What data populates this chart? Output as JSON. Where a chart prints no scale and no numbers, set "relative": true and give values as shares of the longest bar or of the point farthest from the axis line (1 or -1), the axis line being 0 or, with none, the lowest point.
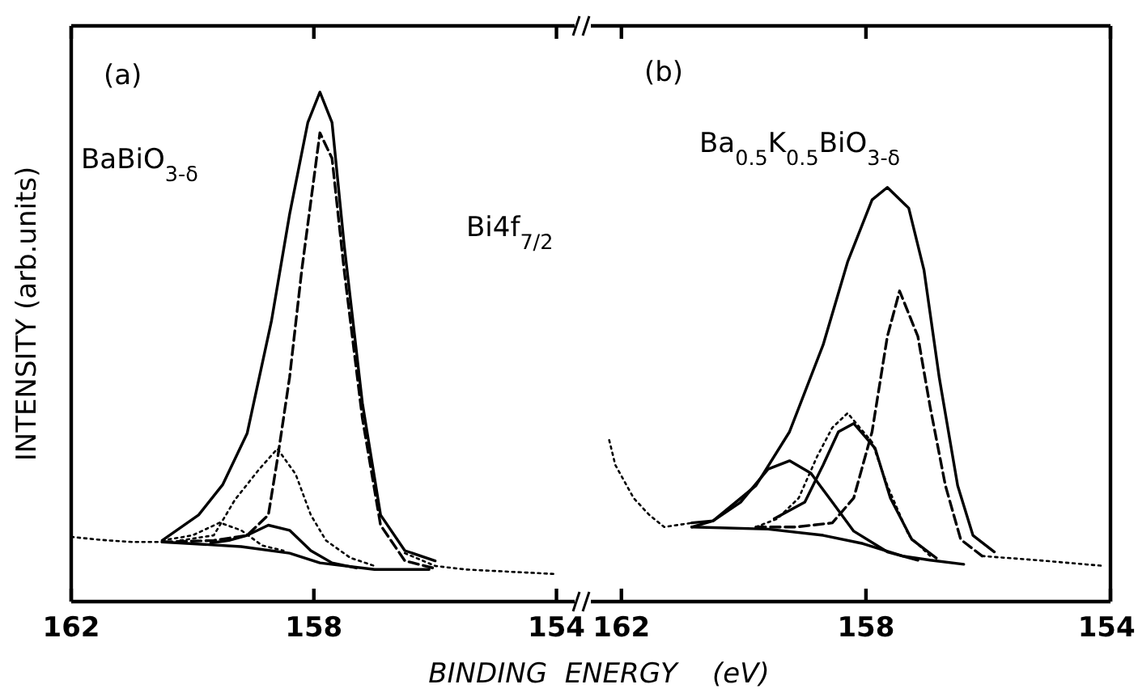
{
  "chart_data": [
    {
      "type": "line",
      "relative": true,
      "xlim": [
        162,
        153.7
      ],
      "xticks": [
        162,
        158,
        154
      ],
      "ylabel": "INTENSITY  (arb.units)",
      "xlabel": "BINDING  ENERGY    (eV)",
      "annotations": [
        "(a)",
        "BaBiO$_{3-δ}$",
        "Bi4f$_{7/2}$"
      ],
      "series": [
        {
          "color": "#000000",
          "line_style": "dotted",
          "x": [
            162,
            161.5,
            161,
            160.5,
            160,
            156.5,
            156,
            155.5,
            155,
            154.5,
            154
          ],
          "values": [
            0.127,
            0.121,
            0.117,
            0.117,
            null,
            0.095,
            0.07,
            0.063,
            0.06,
            0.057,
            0.054
          ]
        },
        {
          "color": "#000000",
          "line_style": "solid",
          "x": [
            160.5,
            159.9,
            159.5,
            159.1,
            158.7,
            158.4,
            158.1,
            157.9,
            157.7,
            157.5,
            157.2,
            156.9,
            156.5,
            156.0
          ],
          "values": [
            0.12,
            0.17,
            0.23,
            0.33,
            0.55,
            0.76,
            0.94,
            1.0,
            0.94,
            0.7,
            0.39,
            0.17,
            0.1,
            0.08
          ]
        },
        {
          "color": "#000000",
          "line_style": "dashed",
          "x": [
            160.5,
            159.65,
            159.1,
            158.75,
            158.6,
            158.4,
            158.2,
            157.9,
            157.7,
            157.5,
            157.2,
            156.9,
            156.5,
            156.0
          ],
          "values": [
            0.117,
            0.12,
            0.13,
            0.17,
            0.28,
            0.44,
            0.65,
            0.92,
            0.87,
            0.65,
            0.36,
            0.15,
            0.08,
            0.065
          ]
        },
        {
          "color": "#000000",
          "line_style": "dotted",
          "x": [
            160.2,
            159.65,
            159.3,
            158.9,
            158.6,
            158.3,
            158.05,
            157.8,
            157.4,
            157.0
          ],
          "values": [
            0.12,
            0.13,
            0.2,
            0.26,
            0.3,
            0.25,
            0.17,
            0.12,
            0.086,
            0.07
          ]
        },
        {
          "color": "#000000",
          "line_style": "solid",
          "x": [
            159.7,
            159.4,
            159.1,
            158.75,
            158.4,
            158.05,
            157.7,
            157.3
          ],
          "values": [
            0.115,
            0.12,
            0.13,
            0.15,
            0.14,
            0.1,
            0.076,
            0.066
          ]
        },
        {
          "color": "#000000",
          "line_style": "dotted",
          "x": [
            160.5,
            160.0,
            159.55,
            159.2,
            158.85,
            158.5
          ],
          "values": [
            0.12,
            0.13,
            0.155,
            0.14,
            0.11,
            0.1
          ]
        },
        {
          "color": "#000000",
          "line_style": "solid",
          "x": [
            160.5,
            159.2,
            158.4,
            157.9,
            157.0,
            156.1
          ],
          "values": [
            0.117,
            0.108,
            0.095,
            0.076,
            0.063,
            0.063
          ]
        }
      ]
    },
    {
      "type": "line",
      "relative": true,
      "xlim": [
        162.5,
        154
      ],
      "xticks": [
        162,
        158,
        154
      ],
      "annotations": [
        "(b)",
        "Ba$_{0.5}$K$_{0.5}$BiO$_{3-δ}$"
      ],
      "series": [
        {
          "color": "#000000",
          "line_style": "dotted",
          "x": [
            162.2,
            162.1,
            161.8,
            161.55,
            161.3,
            160.85,
            158,
            156.1,
            155.2,
            154.1
          ],
          "values": [
            0.39,
            0.33,
            0.25,
            0.21,
            0.18,
            0.19,
            null,
            0.11,
            0.1,
            0.086
          ]
        },
        {
          "color": "#000000",
          "line_style": "solid",
          "x": [
            160.85,
            160.5,
            159.8,
            159.25,
            158.7,
            158.3,
            157.9,
            157.65,
            157.3,
            157.05,
            156.8,
            156.5,
            156.25,
            155.9
          ],
          "values": [
            0.19,
            0.195,
            0.28,
            0.41,
            0.62,
            0.82,
            0.97,
            1.0,
            0.95,
            0.8,
            0.54,
            0.28,
            0.16,
            0.12
          ]
        },
        {
          "color": "#000000",
          "line_style": "dashed",
          "x": [
            159.8,
            159.15,
            158.55,
            158.2,
            157.9,
            157.65,
            157.45,
            157.15,
            156.95,
            156.7,
            156.45,
            156.1
          ],
          "values": [
            0.18,
            0.18,
            0.19,
            0.25,
            0.41,
            0.64,
            0.75,
            0.64,
            0.47,
            0.28,
            0.15,
            0.11
          ]
        },
        {
          "color": "#000000",
          "line_style": "dotted",
          "x": [
            159.8,
            159.45,
            159.1,
            158.8,
            158.55,
            158.3,
            157.9,
            157.65,
            157.3,
            156.95
          ],
          "values": [
            0.18,
            0.2,
            0.25,
            0.35,
            0.42,
            0.455,
            0.385,
            0.28,
            0.16,
            0.11
          ]
        },
        {
          "color": "#000000",
          "line_style": "solid",
          "x": [
            159.5,
            159.0,
            158.7,
            158.45,
            158.2,
            157.85,
            157.6,
            157.25,
            156.85
          ],
          "values": [
            0.2,
            0.24,
            0.33,
            0.41,
            0.43,
            0.37,
            0.25,
            0.15,
            0.105
          ]
        },
        {
          "color": "#000000",
          "line_style": "solid",
          "x": [
            160.85,
            160.5,
            160.05,
            159.6,
            159.25,
            158.9,
            158.55,
            158.2,
            157.65,
            157.15
          ],
          "values": [
            0.18,
            0.195,
            0.24,
            0.32,
            0.34,
            0.31,
            0.24,
            0.17,
            0.12,
            0.1
          ]
        },
        {
          "color": "#000000",
          "line_style": "solid",
          "x": [
            160.85,
            159.6,
            158.7,
            158.05,
            157.4,
            156.95,
            156.4
          ],
          "values": [
            0.18,
            0.175,
            0.16,
            0.14,
            0.11,
            0.1,
            0.09
          ]
        }
      ]
    }
  ]
}
